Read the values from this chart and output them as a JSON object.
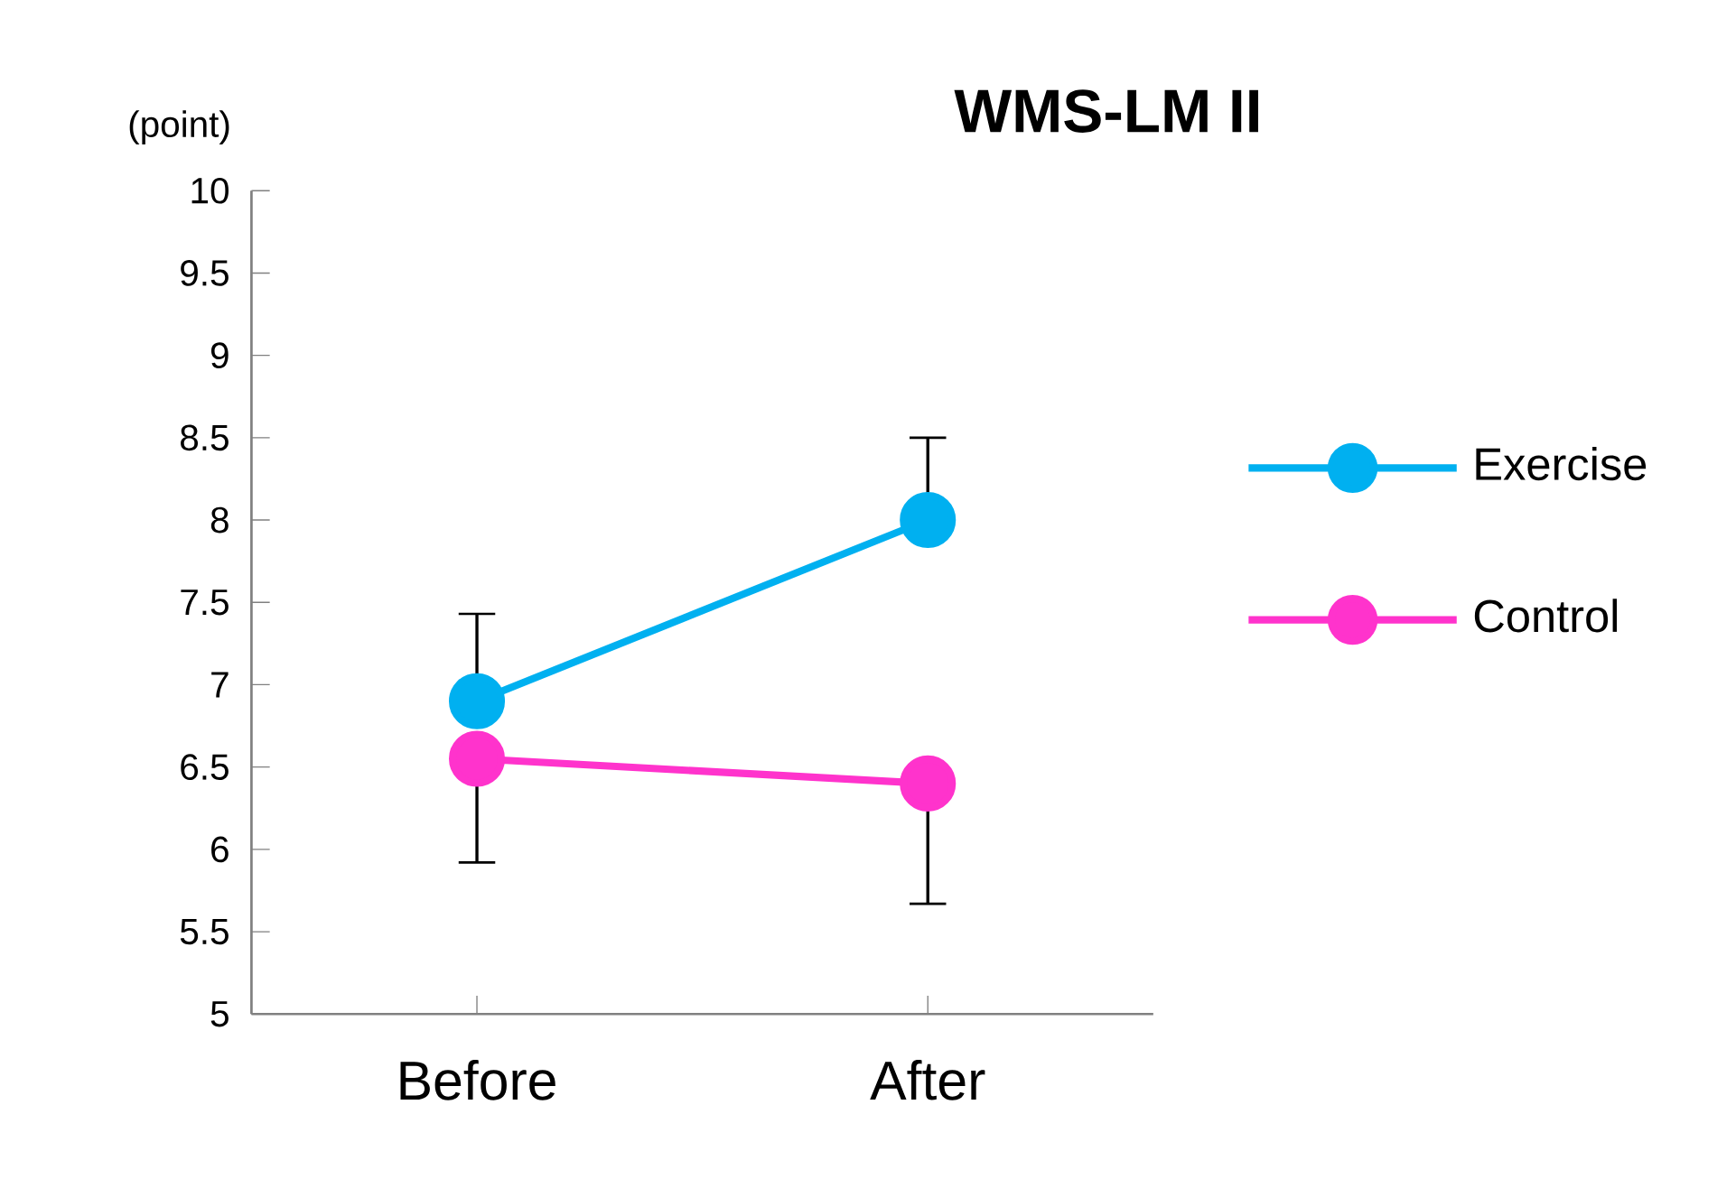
{
  "chart_data": {
    "type": "line",
    "title": "WMS-LM II",
    "ylabel": "(point)",
    "categories": [
      "Before",
      "After"
    ],
    "series": [
      {
        "name": "Exercise",
        "color": "#00b0f0",
        "values": [
          6.9,
          8.0
        ],
        "errors": [
          [
            6.9,
            7.43
          ],
          [
            8.0,
            8.5
          ]
        ]
      },
      {
        "name": "Control",
        "color": "#ff33cc",
        "values": [
          6.55,
          6.4
        ],
        "errors": [
          [
            5.92,
            6.55
          ],
          [
            5.67,
            6.4
          ]
        ]
      }
    ],
    "ylim": [
      5,
      10
    ],
    "yticks": [
      5,
      5.5,
      6,
      6.5,
      7,
      7.5,
      8,
      8.5,
      9,
      9.5,
      10
    ],
    "grid": false,
    "legend": "right",
    "marker": "circle",
    "line_style": "solid"
  }
}
